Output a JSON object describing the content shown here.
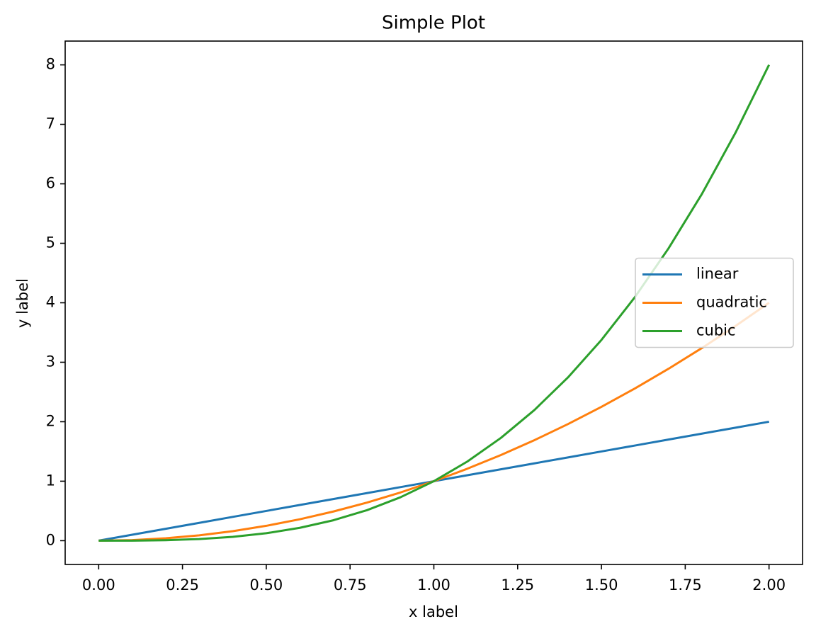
{
  "chart_data": {
    "type": "line",
    "title": "Simple Plot",
    "x_label": "x label",
    "y_label": "y label",
    "x": [
      0,
      0.1,
      0.2,
      0.3,
      0.4,
      0.5,
      0.6,
      0.7,
      0.8,
      0.9,
      1,
      1.1,
      1.2,
      1.3,
      1.4,
      1.5,
      1.6,
      1.7,
      1.8,
      1.9,
      2
    ],
    "series": [
      {
        "name": "linear",
        "color": "#1f77b4",
        "values": [
          0,
          0.1,
          0.2,
          0.3,
          0.4,
          0.5,
          0.6,
          0.7,
          0.8,
          0.9,
          1,
          1.1,
          1.2,
          1.3,
          1.4,
          1.5,
          1.6,
          1.7,
          1.8,
          1.9,
          2
        ]
      },
      {
        "name": "quadratic",
        "color": "#ff7f0e",
        "values": [
          0,
          0.01,
          0.04,
          0.09,
          0.16,
          0.25,
          0.36,
          0.49,
          0.64,
          0.81,
          1,
          1.21,
          1.44,
          1.69,
          1.96,
          2.25,
          2.56,
          2.89,
          3.24,
          3.61,
          4
        ]
      },
      {
        "name": "cubic",
        "color": "#2ca02c",
        "values": [
          0,
          0.001,
          0.008,
          0.027,
          0.064,
          0.125,
          0.216,
          0.343,
          0.512,
          0.729,
          1,
          1.331,
          1.728,
          2.197,
          2.744,
          3.375,
          4.096,
          4.913,
          5.832,
          6.859,
          8
        ]
      }
    ],
    "xlim": [
      -0.1,
      2.1
    ],
    "xticks": [
      {
        "value": 0,
        "label": "0.00"
      },
      {
        "value": 0.25,
        "label": "0.25"
      },
      {
        "value": 0.5,
        "label": "0.50"
      },
      {
        "value": 0.75,
        "label": "0.75"
      },
      {
        "value": 1,
        "label": "1.00"
      },
      {
        "value": 1.25,
        "label": "1.25"
      },
      {
        "value": 1.5,
        "label": "1.50"
      },
      {
        "value": 1.75,
        "label": "1.75"
      },
      {
        "value": 2,
        "label": "2.00"
      }
    ],
    "ylim": [
      -0.4,
      8.4
    ],
    "yticks": [
      0,
      1,
      2,
      3,
      4,
      5,
      6,
      7,
      8
    ],
    "grid": false,
    "legend": "center right"
  }
}
